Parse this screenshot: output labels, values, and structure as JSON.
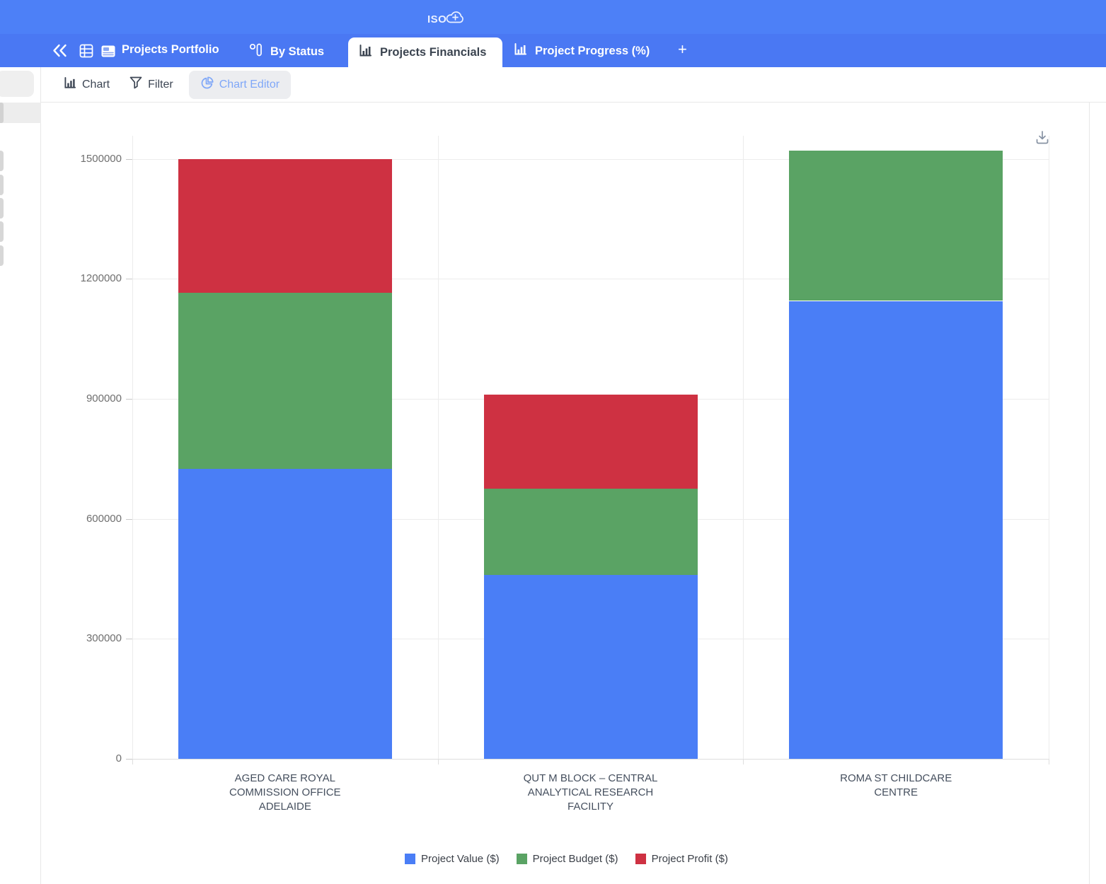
{
  "topbar": {
    "logo_text": "ISO",
    "logo_plus": "+"
  },
  "tabbar": {
    "portfolio_label": "Projects Portfolio",
    "by_status_label": "By Status",
    "financials_label": "Projects Financials",
    "progress_label": "Project Progress (%)",
    "add_tab_label": "+"
  },
  "toolbar": {
    "chart_label": "Chart",
    "filter_label": "Filter",
    "chart_editor_label": "Chart Editor"
  },
  "chart_data": {
    "type": "bar",
    "stacked": true,
    "title": "",
    "xlabel": "",
    "ylabel": "",
    "grid": true,
    "legend_position": "bottom",
    "ylim": [
      0,
      1500000
    ],
    "y_ticks": [
      0,
      300000,
      600000,
      900000,
      1200000,
      1500000
    ],
    "categories": [
      [
        "AGED CARE ROYAL",
        "COMMISSION OFFICE",
        "ADELAIDE"
      ],
      [
        "QUT M BLOCK – CENTRAL",
        "ANALYTICAL RESEARCH",
        "FACILITY"
      ],
      [
        "ROMA ST CHILDCARE",
        "CENTRE"
      ]
    ],
    "series": [
      {
        "name": "Project Value ($)",
        "color": "#4a7ef6",
        "values": [
          725000,
          460000,
          1145000
        ]
      },
      {
        "name": "Project Budget ($)",
        "color": "#5aa364",
        "values": [
          440000,
          215000,
          375000
        ]
      },
      {
        "name": "Project Profit ($)",
        "color": "#ce3142",
        "values": [
          335000,
          235000,
          0
        ]
      }
    ],
    "totals": [
      1500000,
      910000,
      1520000
    ]
  },
  "colors": {
    "topbar": "#4d80f7",
    "tabbar": "#4a78f3",
    "active_tab_text": "#3b4450",
    "chart_editor_accent": "#7fa7f8"
  }
}
